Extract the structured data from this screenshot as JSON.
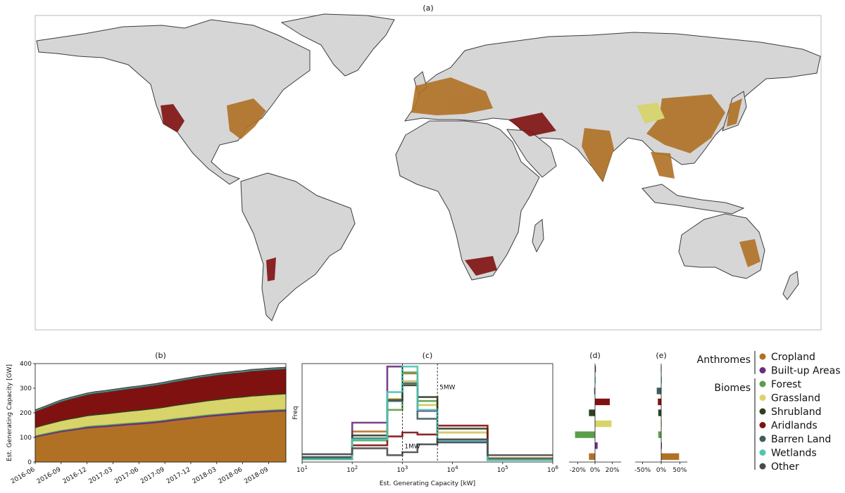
{
  "colors": {
    "Cropland": "#b07125",
    "Built-up Areas": "#6b2c80",
    "Forest": "#5a9e4b",
    "Grassland": "#d8d46a",
    "Shrubland": "#2e4021",
    "Aridlands": "#7f1211",
    "Barren Land": "#3f5d5d",
    "Wetlands": "#4cc7b5",
    "Other": "#4a4a4a"
  },
  "map": {
    "title": "(a)",
    "ocean_color": "#ffffff",
    "land_color": "#d7d7d7",
    "border_color": "#3c3c3c"
  },
  "legend": {
    "groups": [
      {
        "name": "Anthromes",
        "items": [
          "Cropland",
          "Built-up Areas"
        ]
      },
      {
        "name": "Biomes",
        "items": [
          "Forest",
          "Grassland",
          "Shrubland",
          "Aridlands",
          "Barren Land",
          "Wetlands",
          "Other"
        ]
      }
    ]
  },
  "chart_data": [
    {
      "panel": "(b)",
      "type": "area",
      "title": "(b)",
      "ylabel": "Est. Generating Capacity [GW]",
      "xlabel": "",
      "x": [
        "2016-06",
        "2016-07",
        "2016-08",
        "2016-09",
        "2016-10",
        "2016-11",
        "2016-12",
        "2017-01",
        "2017-02",
        "2017-03",
        "2017-04",
        "2017-05",
        "2017-06",
        "2017-07",
        "2017-08",
        "2017-09",
        "2017-10",
        "2017-11",
        "2017-12",
        "2018-01",
        "2018-02",
        "2018-03",
        "2018-04",
        "2018-05",
        "2018-06",
        "2018-07",
        "2018-08",
        "2018-09",
        "2018-10",
        "2018-11"
      ],
      "xticks": [
        "2016-06",
        "2016-09",
        "2016-12",
        "2017-03",
        "2017-06",
        "2017-09",
        "2017-12",
        "2018-03",
        "2018-06",
        "2018-09"
      ],
      "ylim": [
        0,
        400
      ],
      "yticks": [
        0,
        100,
        200,
        300,
        400
      ],
      "series": [
        {
          "name": "Cropland",
          "values": [
            100,
            108,
            115,
            122,
            127,
            132,
            137,
            140,
            142,
            145,
            148,
            151,
            153,
            156,
            159,
            163,
            168,
            172,
            176,
            180,
            184,
            187,
            190,
            193,
            196,
            199,
            201,
            203,
            205,
            206
          ]
        },
        {
          "name": "Built-up Areas",
          "values": [
            5,
            5,
            5,
            5,
            5,
            5,
            6,
            6,
            6,
            6,
            6,
            6,
            6,
            6,
            6,
            6,
            6,
            6,
            6,
            6,
            6,
            6,
            6,
            6,
            6,
            6,
            6,
            6,
            6,
            6
          ]
        },
        {
          "name": "Forest",
          "values": [
            4,
            4,
            4,
            4,
            4,
            4,
            4,
            4,
            4,
            4,
            4,
            4,
            4,
            4,
            4,
            4,
            4,
            4,
            4,
            4,
            4,
            4,
            4,
            4,
            4,
            4,
            4,
            4,
            4,
            4
          ]
        },
        {
          "name": "Grassland",
          "values": [
            30,
            32,
            34,
            36,
            38,
            39,
            40,
            41,
            42,
            43,
            44,
            45,
            46,
            47,
            48,
            49,
            50,
            51,
            52,
            53,
            54,
            55,
            56,
            57,
            57,
            58,
            58,
            59,
            59,
            60
          ]
        },
        {
          "name": "Shrubland",
          "values": [
            4,
            4,
            4,
            4,
            4,
            4,
            4,
            4,
            4,
            4,
            4,
            4,
            4,
            4,
            4,
            4,
            4,
            4,
            4,
            4,
            4,
            4,
            4,
            4,
            4,
            4,
            4,
            4,
            4,
            4
          ]
        },
        {
          "name": "Aridlands",
          "values": [
            62,
            65,
            70,
            74,
            77,
            80,
            82,
            84,
            85,
            86,
            87,
            88,
            89,
            90,
            91,
            92,
            93,
            94,
            95,
            96,
            96,
            97,
            97,
            97,
            97,
            98,
            98,
            98,
            98,
            98
          ]
        },
        {
          "name": "Barren Land",
          "values": [
            3,
            3,
            3,
            3,
            3,
            3,
            3,
            3,
            3,
            3,
            3,
            3,
            3,
            3,
            3,
            3,
            3,
            3,
            3,
            3,
            3,
            3,
            3,
            3,
            3,
            3,
            3,
            3,
            3,
            3
          ]
        },
        {
          "name": "Wetlands",
          "values": [
            2,
            2,
            2,
            2,
            2,
            2,
            2,
            2,
            2,
            2,
            2,
            2,
            2,
            2,
            2,
            2,
            2,
            2,
            2,
            2,
            2,
            2,
            2,
            2,
            2,
            2,
            2,
            2,
            2,
            2
          ]
        },
        {
          "name": "Other",
          "values": [
            3,
            3,
            3,
            3,
            3,
            3,
            3,
            3,
            3,
            3,
            3,
            3,
            3,
            3,
            3,
            3,
            3,
            3,
            3,
            3,
            3,
            3,
            3,
            3,
            3,
            3,
            3,
            3,
            3,
            3
          ]
        }
      ]
    },
    {
      "panel": "(c)",
      "type": "line",
      "title": "(c)",
      "xlabel": "Est. Generating Capacity [kW]",
      "ylabel": "Freq",
      "xscale": "log",
      "xlim": [
        10,
        1000000
      ],
      "xticks": [
        "10^1",
        "10^2",
        "10^3",
        "10^4",
        "10^5",
        "10^6"
      ],
      "bin_edges": [
        10,
        100,
        500,
        1000,
        2000,
        5000,
        50000,
        1000000
      ],
      "ylim": [
        0,
        1
      ],
      "vlines": [
        {
          "x": 1000,
          "label": "1MW"
        },
        {
          "x": 5000,
          "label": "5MW"
        }
      ],
      "series": [
        {
          "name": "Cropland",
          "values": [
            0.04,
            0.31,
            0.64,
            0.9,
            0.58,
            0.3,
            0.04
          ]
        },
        {
          "name": "Built-up Areas",
          "values": [
            0.05,
            0.4,
            0.97,
            0.82,
            0.52,
            0.2,
            0.03
          ]
        },
        {
          "name": "Forest",
          "values": [
            0.04,
            0.22,
            0.53,
            0.91,
            0.62,
            0.23,
            0.02
          ]
        },
        {
          "name": "Grassland",
          "values": [
            0.03,
            0.24,
            0.64,
            0.82,
            0.58,
            0.3,
            0.03
          ]
        },
        {
          "name": "Shrubland",
          "values": [
            0.04,
            0.27,
            0.63,
            0.78,
            0.66,
            0.34,
            0.02
          ]
        },
        {
          "name": "Aridlands",
          "values": [
            0.03,
            0.17,
            0.26,
            0.3,
            0.28,
            0.37,
            0.03
          ]
        },
        {
          "name": "Barren Land",
          "values": [
            0.05,
            0.24,
            0.62,
            0.8,
            0.44,
            0.2,
            0.03
          ]
        },
        {
          "name": "Wetlands",
          "values": [
            0.03,
            0.23,
            0.71,
            0.97,
            0.53,
            0.22,
            0.02
          ]
        },
        {
          "name": "Other",
          "values": [
            0.08,
            0.14,
            0.07,
            0.1,
            0.18,
            0.23,
            0.07
          ]
        }
      ]
    },
    {
      "panel": "(d)",
      "type": "bar",
      "orientation": "horizontal",
      "title": "(d)",
      "categories": [
        "Other",
        "Wetlands",
        "Barren Land",
        "Aridlands",
        "Shrubland",
        "Grassland",
        "Forest",
        "Built-up Areas",
        "Cropland"
      ],
      "values": [
        1,
        0.5,
        -1,
        17,
        -7,
        19,
        -23,
        3,
        -7
      ],
      "xlim": [
        -30,
        30
      ],
      "xticks": [
        "-20%",
        "0%",
        "20%"
      ],
      "xtick_values": [
        -20,
        0,
        20
      ]
    },
    {
      "panel": "(e)",
      "type": "bar",
      "orientation": "horizontal",
      "title": "(e)",
      "categories": [
        "Other",
        "Wetlands",
        "Barren Land",
        "Aridlands",
        "Shrubland",
        "Grassland",
        "Forest",
        "Built-up Areas",
        "Cropland"
      ],
      "values": [
        -1,
        0.5,
        -12,
        -9,
        -8,
        0.5,
        -8,
        0.5,
        48
      ],
      "xlim": [
        -70,
        70
      ],
      "xticks": [
        "-50%",
        "0%",
        "50%"
      ],
      "xtick_values": [
        -50,
        0,
        50
      ]
    }
  ]
}
